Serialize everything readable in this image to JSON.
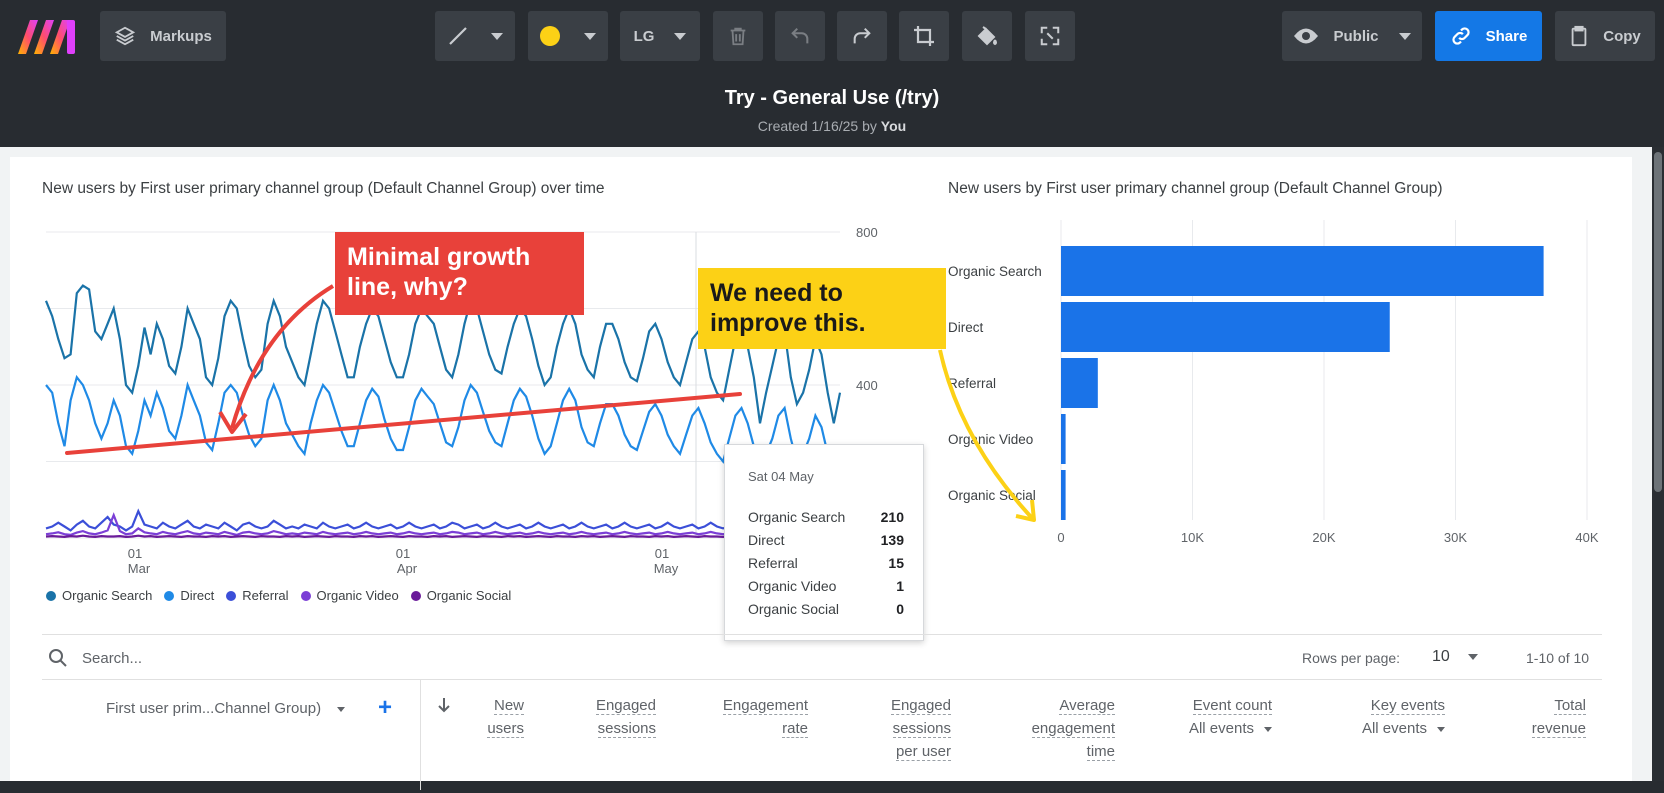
{
  "toolbar": {
    "markups_label": "Markups",
    "size_label": "LG",
    "visibility_label": "Public",
    "share_label": "Share",
    "copy_label": "Copy",
    "marker_color": "#fcd116"
  },
  "document": {
    "title": "Try - General Use (/try)",
    "created_prefix": "Created 1/16/25 by",
    "created_by": "You"
  },
  "line_chart_panel": {
    "title": "New users by First user primary channel group (Default Channel Group) over time",
    "legend": [
      {
        "label": "Organic Search",
        "color": "#1a73a8"
      },
      {
        "label": "Direct",
        "color": "#1f8ae6"
      },
      {
        "label": "Referral",
        "color": "#3b4fd8"
      },
      {
        "label": "Organic Video",
        "color": "#7b3fd6"
      },
      {
        "label": "Organic Social",
        "color": "#6a1b9a"
      }
    ]
  },
  "bar_chart_panel": {
    "title": "New users by First user primary channel group (Default Channel Group)"
  },
  "tooltip": {
    "date": "Sat 04 May",
    "rows": [
      {
        "label": "Organic Search",
        "value": "210"
      },
      {
        "label": "Direct",
        "value": "139"
      },
      {
        "label": "Referral",
        "value": "15"
      },
      {
        "label": "Organic Video",
        "value": "1"
      },
      {
        "label": "Organic Social",
        "value": "0"
      }
    ]
  },
  "annotations": {
    "red_note": "Minimal growth line, why?",
    "yellow_note": "We need to improve this."
  },
  "table": {
    "search_placeholder": "Search...",
    "rows_per_page_label": "Rows per page:",
    "rows_per_page_value": "10",
    "pagination": "1-10 of 10",
    "dimension_header": "First user prim...Channel Group)",
    "columns": [
      {
        "line1": "New",
        "line2": "users",
        "line3": ""
      },
      {
        "line1": "Engaged",
        "line2": "sessions",
        "line3": ""
      },
      {
        "line1": "Engagement",
        "line2": "rate",
        "line3": ""
      },
      {
        "line1": "Engaged",
        "line2": "sessions",
        "line3": "per user"
      },
      {
        "line1": "Average",
        "line2": "engagement",
        "line3": "time"
      },
      {
        "line1": "Event count",
        "line2": "All events",
        "line3": ""
      },
      {
        "line1": "Key events",
        "line2": "All events",
        "line3": ""
      },
      {
        "line1": "Total",
        "line2": "revenue",
        "line3": ""
      }
    ]
  },
  "chart_data": [
    {
      "type": "line",
      "x_tick_labels": [
        {
          "day": "01",
          "month": "Mar"
        },
        {
          "day": "01",
          "month": "Apr"
        },
        {
          "day": "01",
          "month": "May"
        }
      ],
      "y_tick_labels": [
        "800",
        "400"
      ],
      "ylim": [
        0,
        800
      ],
      "series": [
        {
          "name": "Organic Search",
          "values": [
            620,
            580,
            520,
            470,
            480,
            640,
            660,
            650,
            540,
            520,
            560,
            600,
            520,
            400,
            380,
            450,
            550,
            480,
            560,
            520,
            450,
            430,
            500,
            600,
            560,
            520,
            420,
            400,
            470,
            580,
            620,
            600,
            520,
            450,
            420,
            440,
            560,
            620,
            580,
            500,
            460,
            420,
            400,
            480,
            560,
            620,
            600,
            540,
            480,
            420,
            420,
            500,
            560,
            600,
            580,
            520,
            460,
            420,
            420,
            480,
            560,
            600,
            580,
            560,
            500,
            440,
            420,
            480,
            560,
            620,
            600,
            540,
            480,
            440,
            430,
            500,
            560,
            600,
            580,
            520,
            450,
            400,
            420,
            500,
            560,
            600,
            560,
            480,
            440,
            420,
            500,
            560,
            560,
            520,
            460,
            420,
            410,
            470,
            540,
            560,
            520,
            460,
            420,
            400,
            460,
            520,
            540,
            500,
            420,
            380,
            360,
            440,
            520,
            540,
            500,
            420,
            300,
            380,
            450,
            520,
            540,
            420,
            350,
            380,
            440,
            520,
            480,
            380,
            300,
            380
          ]
        },
        {
          "name": "Direct",
          "values": [
            400,
            380,
            300,
            240,
            360,
            420,
            400,
            360,
            300,
            260,
            300,
            360,
            320,
            240,
            220,
            280,
            360,
            320,
            380,
            340,
            280,
            260,
            320,
            400,
            360,
            320,
            250,
            230,
            300,
            380,
            400,
            380,
            320,
            270,
            240,
            260,
            360,
            400,
            360,
            300,
            270,
            240,
            220,
            300,
            360,
            400,
            380,
            330,
            280,
            240,
            240,
            300,
            360,
            390,
            370,
            310,
            260,
            230,
            230,
            290,
            360,
            390,
            370,
            350,
            300,
            250,
            240,
            290,
            360,
            400,
            380,
            330,
            280,
            250,
            240,
            300,
            360,
            390,
            370,
            320,
            260,
            220,
            240,
            300,
            360,
            390,
            360,
            290,
            250,
            240,
            300,
            350,
            350,
            320,
            270,
            240,
            230,
            280,
            330,
            350,
            320,
            270,
            240,
            220,
            270,
            320,
            340,
            300,
            250,
            220,
            200,
            260,
            320,
            340,
            300,
            240,
            180,
            220,
            260,
            320,
            340,
            260,
            200,
            220,
            260,
            320,
            290,
            220,
            180,
            220
          ]
        },
        {
          "name": "Referral",
          "values": [
            25,
            30,
            40,
            30,
            20,
            35,
            45,
            30,
            25,
            40,
            55,
            35,
            30,
            20,
            30,
            70,
            35,
            30,
            25,
            40,
            30,
            25,
            35,
            45,
            30,
            25,
            35,
            30,
            25,
            40,
            30,
            20,
            35,
            40,
            30,
            25,
            30,
            45,
            35,
            25,
            30,
            25,
            35,
            30,
            25,
            40,
            30,
            25,
            30,
            35,
            25,
            30,
            40,
            30,
            25,
            30,
            35,
            25,
            30,
            40,
            30,
            25,
            30,
            35,
            25,
            30,
            40,
            35,
            25,
            30,
            35,
            25,
            30,
            40,
            30,
            25,
            30,
            35,
            25,
            30,
            40,
            30,
            25,
            30,
            35,
            25,
            30,
            40,
            30,
            25,
            30,
            35,
            25,
            30,
            40,
            30,
            25,
            30,
            35,
            25,
            30,
            40,
            30,
            25,
            30,
            35,
            25,
            30,
            40,
            30,
            25,
            30,
            35,
            25,
            30,
            40,
            30,
            25,
            15,
            20,
            30,
            25,
            20,
            30,
            25,
            20,
            30,
            25,
            20,
            25
          ]
        },
        {
          "name": "Organic Video",
          "values": [
            10,
            12,
            15,
            10,
            8,
            14,
            18,
            12,
            10,
            14,
            20,
            60,
            18,
            10,
            12,
            25,
            15,
            12,
            10,
            16,
            12,
            10,
            14,
            18,
            12,
            10,
            14,
            12,
            10,
            16,
            12,
            8,
            14,
            16,
            12,
            10,
            12,
            18,
            14,
            10,
            12,
            10,
            14,
            12,
            10,
            16,
            12,
            10,
            12,
            14,
            10,
            12,
            16,
            12,
            10,
            12,
            14,
            10,
            12,
            16,
            12,
            10,
            12,
            14,
            10,
            12,
            16,
            14,
            10,
            12,
            14,
            10,
            12,
            16,
            12,
            10,
            12,
            14,
            10,
            12,
            16,
            12,
            10,
            12,
            14,
            10,
            12,
            16,
            12,
            10,
            12,
            14,
            10,
            12,
            16,
            12,
            10,
            12,
            14,
            10,
            12,
            16,
            12,
            10,
            12,
            14,
            10,
            12,
            16,
            12,
            10,
            12,
            14,
            10,
            12,
            16,
            12,
            10,
            1,
            8,
            10,
            12,
            8,
            10,
            12,
            8,
            10,
            12,
            8,
            10
          ]
        },
        {
          "name": "Organic Social",
          "values": [
            4,
            5,
            4,
            3,
            5,
            4,
            6,
            4,
            3,
            5,
            4,
            4,
            5,
            3,
            4,
            6,
            4,
            5,
            3,
            4,
            5,
            4,
            3,
            5,
            4,
            4,
            3,
            5,
            4,
            5,
            3,
            4,
            5,
            4,
            3,
            5,
            4,
            4,
            3,
            5,
            4,
            5,
            3,
            4,
            5,
            4,
            3,
            5,
            4,
            4,
            3,
            5,
            4,
            5,
            3,
            4,
            5,
            4,
            3,
            5,
            4,
            4,
            3,
            5,
            4,
            5,
            3,
            4,
            5,
            4,
            3,
            5,
            4,
            4,
            3,
            5,
            4,
            5,
            3,
            4,
            5,
            4,
            3,
            5,
            4,
            4,
            3,
            5,
            4,
            5,
            3,
            4,
            5,
            4,
            3,
            5,
            4,
            4,
            3,
            5,
            4,
            5,
            3,
            4,
            5,
            4,
            3,
            5,
            4,
            4,
            3,
            5,
            4,
            5,
            3,
            4,
            5,
            4,
            0,
            4,
            5,
            4,
            3,
            5,
            4,
            4,
            3,
            5,
            4,
            4
          ]
        }
      ]
    },
    {
      "type": "bar",
      "orientation": "horizontal",
      "categories": [
        "Organic Search",
        "Direct",
        "Referral",
        "Organic Video",
        "Organic Social"
      ],
      "values": [
        36700,
        25000,
        2800,
        350,
        350
      ],
      "xlim": [
        0,
        40000
      ],
      "x_tick_labels": [
        "0",
        "10K",
        "20K",
        "30K",
        "40K"
      ],
      "bar_color": "#1a73e8"
    }
  ]
}
